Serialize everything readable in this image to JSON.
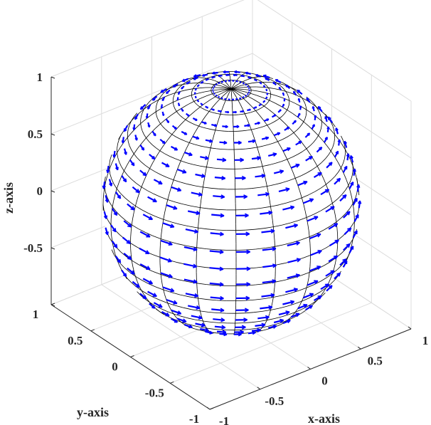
{
  "chart_data": {
    "type": "quiver3d-on-sphere-surface",
    "xlabel": "x-axis",
    "ylabel": "y-axis",
    "zlabel": "z-axis",
    "xlim": [
      -1,
      1
    ],
    "ylim": [
      -1,
      1
    ],
    "zlim": [
      -1,
      1
    ],
    "xticks": [
      "-1",
      "-0.5",
      "0",
      "0.5",
      "1"
    ],
    "yticks": [
      "-1",
      "-0.5",
      "0",
      "0.5",
      "1"
    ],
    "zticks": [
      "-0.5",
      "0",
      "0.5",
      "1"
    ],
    "view": {
      "azimuth": -37.5,
      "elevation": 30
    },
    "grid": true,
    "surface": {
      "shape": "unit sphere",
      "face_color": "#ffffff",
      "edge_color": "#000000"
    },
    "vectors": {
      "direction": "tangential, circulating about the z-axis",
      "color": "#0000ff"
    }
  }
}
